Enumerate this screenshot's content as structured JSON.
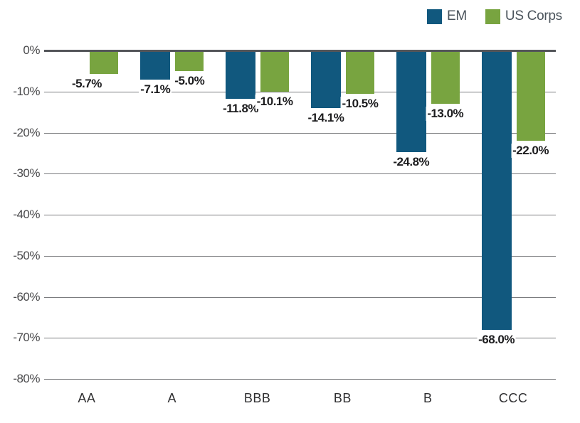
{
  "chart_data": {
    "type": "bar",
    "title": "",
    "orientation": "vertical-negative",
    "categories": [
      "AA",
      "A",
      "BBB",
      "BB",
      "B",
      "CCC"
    ],
    "series": [
      {
        "name": "EM",
        "color": "#11587E",
        "values": [
          null,
          -7.1,
          -11.8,
          -14.1,
          -24.8,
          -68.0
        ],
        "labels": [
          "",
          "-7.1%",
          "-11.8%",
          "-14.1%",
          "-24.8%",
          "-68.0%"
        ]
      },
      {
        "name": "US Corps",
        "color": "#78A440",
        "values": [
          -5.7,
          -5.0,
          -10.1,
          -10.5,
          -13.0,
          -22.0
        ],
        "labels": [
          "-5.7%",
          "-5.0%",
          "-10.1%",
          "-10.5%",
          "-13.0%",
          "-22.0%"
        ]
      }
    ],
    "y_axis": {
      "min": -80,
      "max": 0,
      "step": 10,
      "ticks": [
        "0%",
        "-10%",
        "-20%",
        "-30%",
        "-40%",
        "-50%",
        "-60%",
        "-70%",
        "-80%"
      ]
    },
    "grid": true,
    "legend_position": "top-right",
    "colors": {
      "axis_line": "#54565A",
      "gridline": "#7B7C7F",
      "tick_label": "#4A4A4C",
      "data_label": "#1C1C1E",
      "legend_text": "#4B545C",
      "background": "#FFFFFF"
    }
  }
}
